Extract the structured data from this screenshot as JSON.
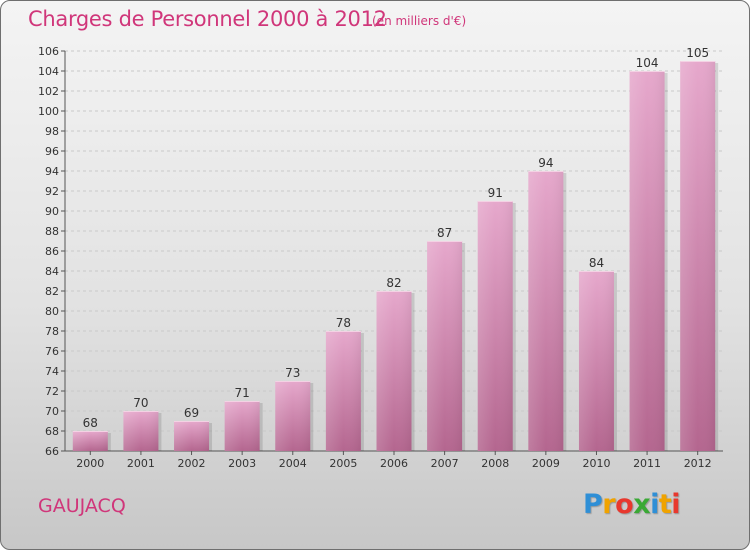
{
  "header": {
    "title": "Charges de Personnel 2000 à 2012",
    "subtitle": "(en milliers d'€)"
  },
  "footer": {
    "location": "GAUJACQ",
    "logo_letters": [
      {
        "ch": "P",
        "color": "#2f8fd6"
      },
      {
        "ch": "r",
        "color": "#f0a300"
      },
      {
        "ch": "o",
        "color": "#e8382e"
      },
      {
        "ch": "x",
        "color": "#3aa935"
      },
      {
        "ch": "i",
        "color": "#2f8fd6"
      },
      {
        "ch": "t",
        "color": "#f0a300"
      },
      {
        "ch": "i",
        "color": "#e8382e"
      }
    ]
  },
  "chart_data": {
    "type": "bar",
    "title": "Charges de Personnel 2000 à 2012",
    "subtitle": "(en milliers d'€)",
    "categories": [
      "2000",
      "2001",
      "2002",
      "2003",
      "2004",
      "2005",
      "2006",
      "2007",
      "2008",
      "2009",
      "2010",
      "2011",
      "2012"
    ],
    "values": [
      68,
      70,
      69,
      71,
      73,
      78,
      82,
      87,
      91,
      94,
      84,
      104,
      105
    ],
    "ylim": [
      66,
      106
    ],
    "y_ticks": [
      66,
      68,
      70,
      72,
      74,
      76,
      78,
      80,
      82,
      84,
      86,
      88,
      90,
      92,
      94,
      96,
      98,
      100,
      102,
      104,
      106
    ],
    "grid": true,
    "bar_color_top": "#e6a8cc",
    "bar_color_bottom": "#b4668f"
  }
}
